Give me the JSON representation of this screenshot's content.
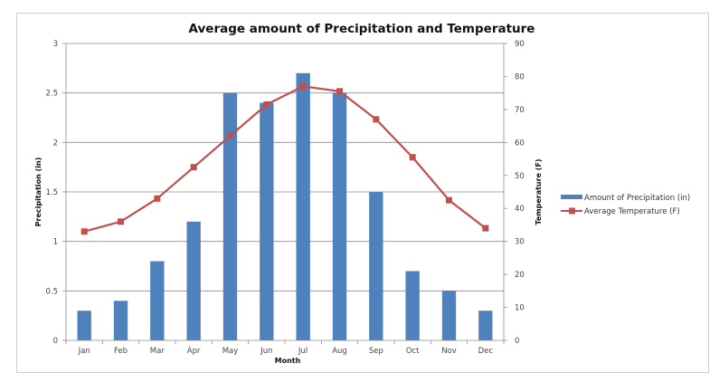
{
  "chart_data": {
    "type": "bar+line",
    "title": "Average amount of Precipitation and Temperature",
    "xlabel": "Month",
    "ylabel": "Precipitation (in)",
    "y2label": "Temperature (F)",
    "categories": [
      "Jan",
      "Feb",
      "Mar",
      "Apr",
      "May",
      "Jun",
      "Jul",
      "Aug",
      "Sep",
      "Oct",
      "Nov",
      "Dec"
    ],
    "series": [
      {
        "name": "Amount of Precipitation (in)",
        "type": "bar",
        "axis": "left",
        "color": "#4f81bd",
        "values": [
          0.3,
          0.4,
          0.8,
          1.2,
          2.5,
          2.4,
          2.7,
          2.5,
          1.5,
          0.7,
          0.5,
          0.3
        ]
      },
      {
        "name": "Average Temperature (F)",
        "type": "line",
        "axis": "right",
        "color": "#c0504d",
        "values": [
          33,
          36,
          43,
          52.5,
          62,
          71.5,
          77,
          75.5,
          67,
          55.5,
          42.5,
          34
        ]
      }
    ],
    "ylim": [
      0,
      3
    ],
    "yticks": [
      "0",
      "0.5",
      "1",
      "1.5",
      "2",
      "2.5",
      "3"
    ],
    "y2lim": [
      0,
      90
    ],
    "y2ticks": [
      "0",
      "10",
      "20",
      "30",
      "40",
      "50",
      "60",
      "70",
      "80",
      "90"
    ],
    "grid": true,
    "legend_position": "right"
  }
}
